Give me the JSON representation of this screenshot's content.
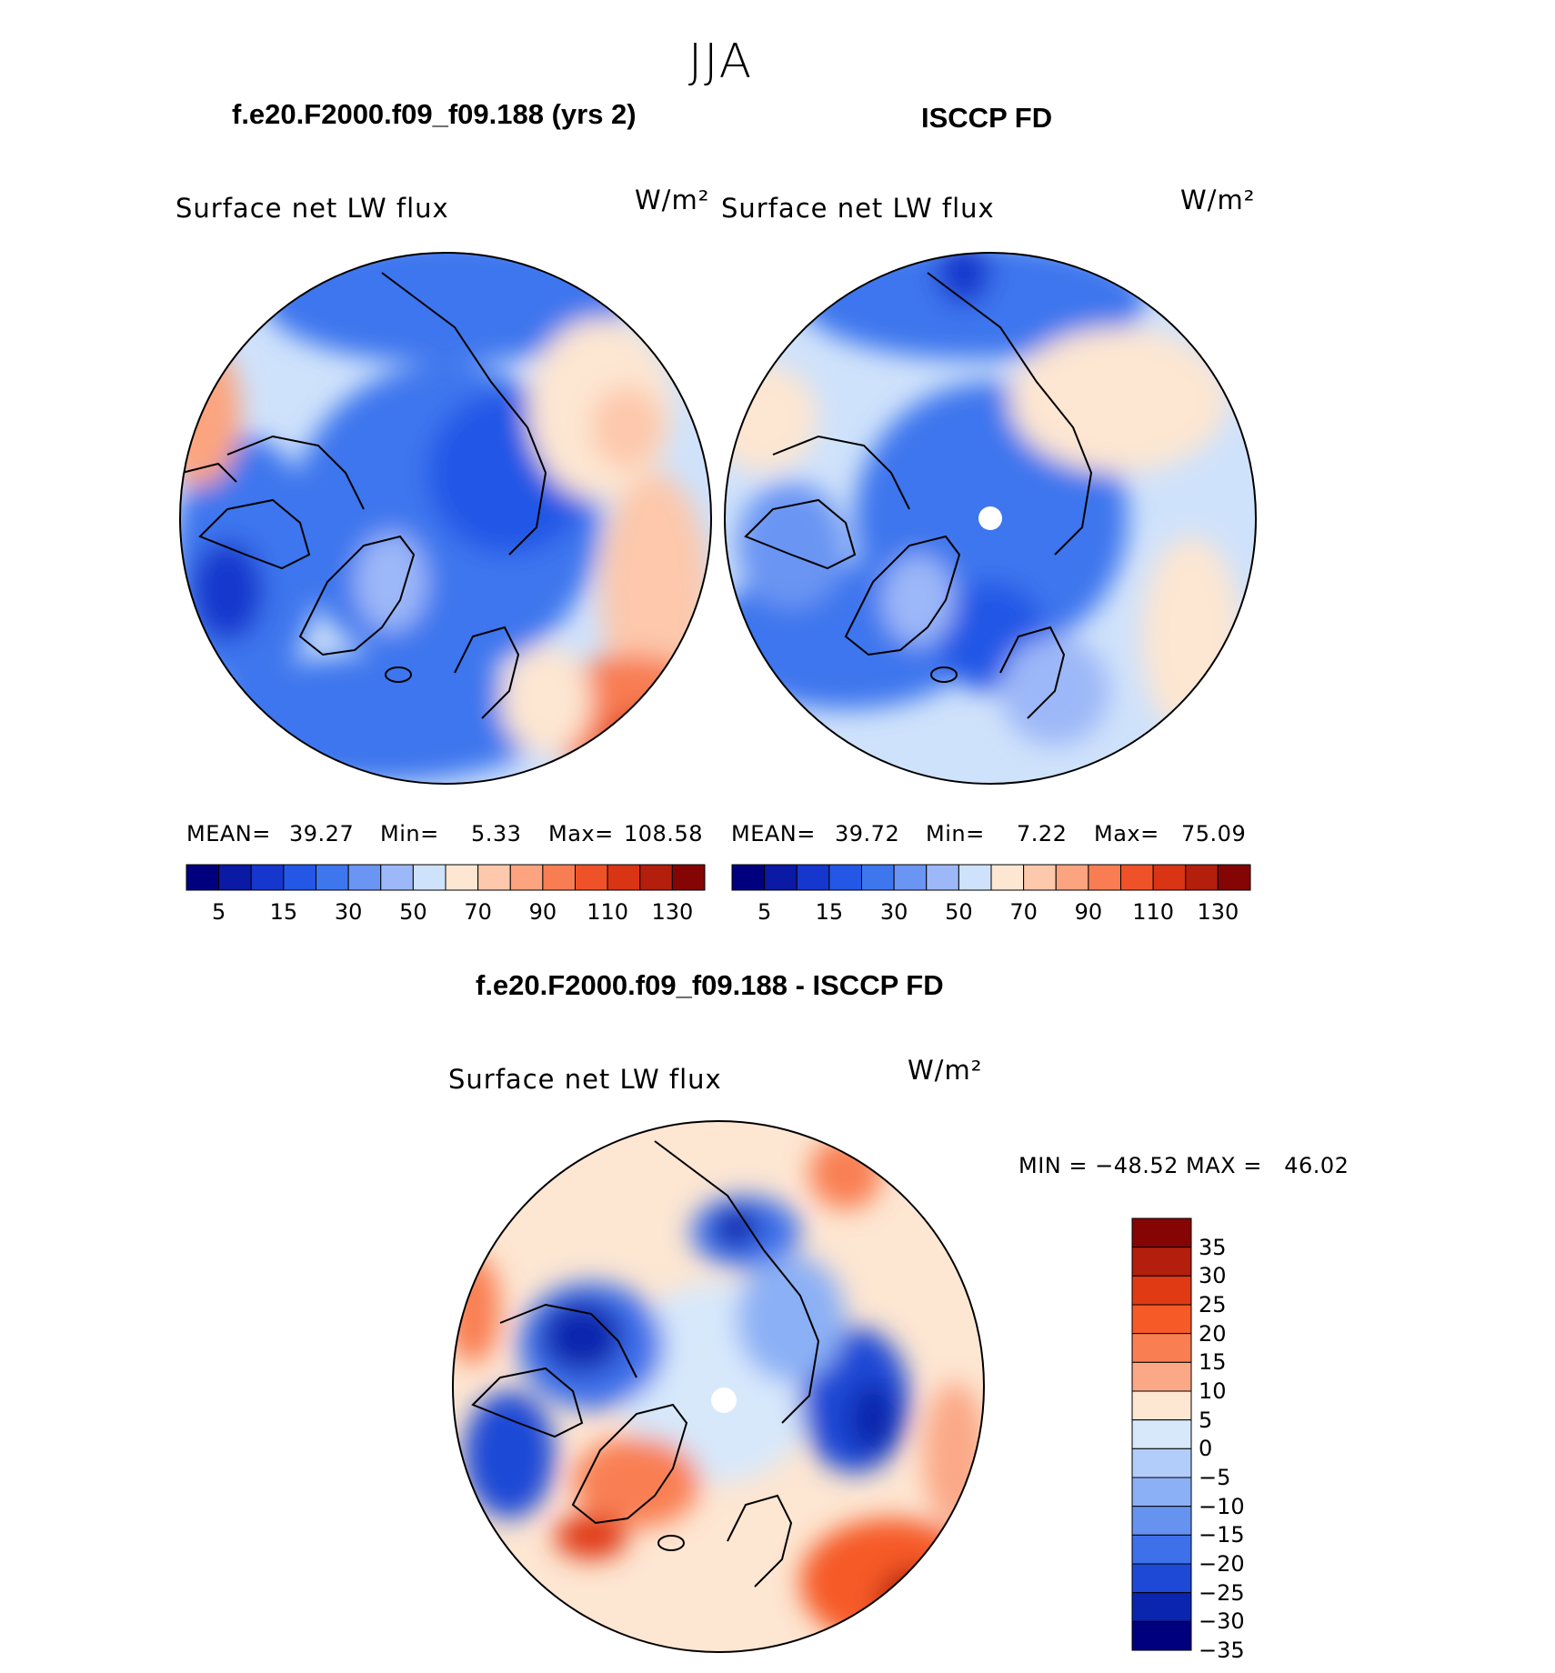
{
  "season": "JJA",
  "panels": [
    {
      "id": "model",
      "title": "f.e20.F2000.f09_f09.188 (yrs 2)",
      "variable": "Surface net LW flux",
      "units": "W/m²",
      "stats": {
        "mean_label": "MEAN=",
        "mean": "39.27",
        "min_label": "Min=",
        "min": "5.33",
        "max_label": "Max=",
        "max": "108.58"
      }
    },
    {
      "id": "obs",
      "title": "ISCCP FD",
      "variable": "Surface net LW flux",
      "units": "W/m²",
      "stats": {
        "mean_label": "MEAN=",
        "mean": "39.72",
        "min_label": "Min=",
        "min": "7.22",
        "max_label": "Max=",
        "max": "75.09"
      }
    },
    {
      "id": "diff",
      "title": "f.e20.F2000.f09_f09.188 - ISCCP FD",
      "variable": "Surface net LW flux",
      "units": "W/m²",
      "stats": {
        "text": "MIN = −48.52 MAX =   46.02"
      }
    }
  ],
  "colorbars": {
    "abs": {
      "colors": [
        "#00007f",
        "#0a1aa5",
        "#1637cd",
        "#2457e6",
        "#3e76ee",
        "#6a95f3",
        "#9db8f8",
        "#cfe2fb",
        "#fde6d2",
        "#fdc8ac",
        "#fca47f",
        "#f87d52",
        "#ef5228",
        "#d93414",
        "#b41e0c",
        "#850505"
      ],
      "tick_labels": [
        "5",
        "15",
        "30",
        "50",
        "70",
        "90",
        "110",
        "130"
      ]
    },
    "diff": {
      "colors": [
        "#850505",
        "#b41e0c",
        "#e03a14",
        "#f65a26",
        "#f97f53",
        "#fba887",
        "#fde6d2",
        "#d7e8fb",
        "#b2cdf9",
        "#8cb0f5",
        "#6693ef",
        "#3e70ea",
        "#1d49d6",
        "#0a25ae",
        "#00007f"
      ],
      "tick_labels": [
        "35",
        "30",
        "25",
        "20",
        "15",
        "10",
        "5",
        "0",
        "−5",
        "−10",
        "−15",
        "−20",
        "−25",
        "−30",
        "−35"
      ]
    }
  },
  "chart_data": [
    {
      "type": "heatmap",
      "title": "f.e20.F2000.f09_f09.188 (yrs 2)",
      "projection": "north polar stereographic",
      "field": "Surface net LW flux",
      "units": "W/m2",
      "mean": 39.27,
      "min": 5.33,
      "max": 108.58,
      "contour_levels": [
        5,
        10,
        15,
        20,
        25,
        30,
        40,
        50,
        60,
        70,
        80,
        90,
        100,
        110,
        120,
        130
      ]
    },
    {
      "type": "heatmap",
      "title": "ISCCP FD",
      "projection": "north polar stereographic",
      "field": "Surface net LW flux",
      "units": "W/m2",
      "mean": 39.72,
      "min": 7.22,
      "max": 75.09,
      "contour_levels": [
        5,
        10,
        15,
        20,
        25,
        30,
        40,
        50,
        60,
        70,
        80,
        90,
        100,
        110,
        120,
        130
      ]
    },
    {
      "type": "heatmap",
      "title": "f.e20.F2000.f09_f09.188 - ISCCP FD",
      "projection": "north polar stereographic",
      "field": "Surface net LW flux",
      "units": "W/m2",
      "min": -48.52,
      "max": 46.02,
      "contour_levels": [
        -35,
        -30,
        -25,
        -20,
        -15,
        -10,
        -5,
        0,
        5,
        10,
        15,
        20,
        25,
        30,
        35
      ]
    }
  ]
}
